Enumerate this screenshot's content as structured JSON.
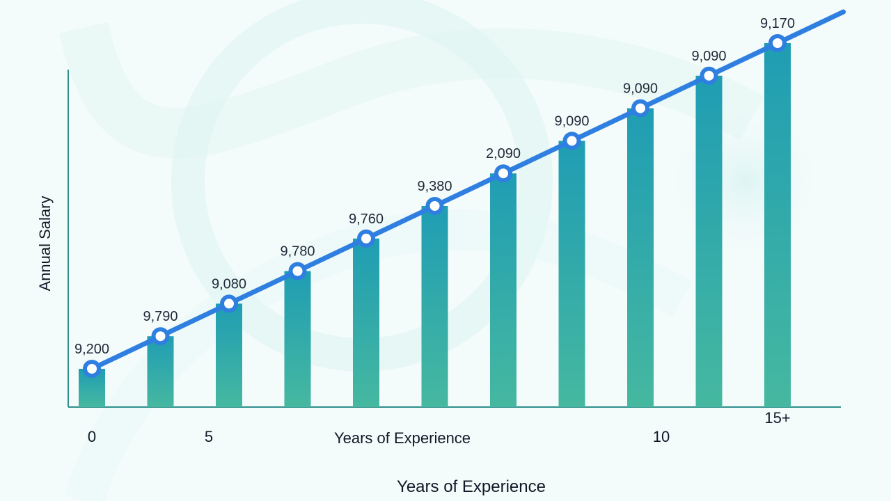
{
  "colors": {
    "background": "#f4fbfb",
    "bar_start": "#46b8a0",
    "bar_end": "#1f9db3",
    "line": "#2f7fe0",
    "marker_fill": "#ffffff",
    "marker_stroke": "#2f7fe0"
  },
  "chart_data": {
    "type": "bar",
    "title": "",
    "xlabel": "Years of Experience",
    "xlabel_secondary": "Years of Experience",
    "ylabel": "Annual Salary",
    "x_ticks": [
      {
        "label": "0",
        "index": 0
      },
      {
        "label": "5",
        "index": 2
      },
      {
        "label": "10",
        "index": 8
      },
      {
        "label": "15+",
        "index": 10
      }
    ],
    "series": [
      {
        "values": [
          0,
          1,
          2,
          3,
          4,
          5,
          6,
          7,
          8,
          9,
          10
        ],
        "data_labels": [
          "9,200",
          "9,790",
          "9,080",
          "9,780",
          "9,760",
          "9,380",
          "2,090",
          "9,090",
          "9,090",
          "9,090",
          "9,170"
        ]
      }
    ],
    "grid": false,
    "legend": "none"
  }
}
